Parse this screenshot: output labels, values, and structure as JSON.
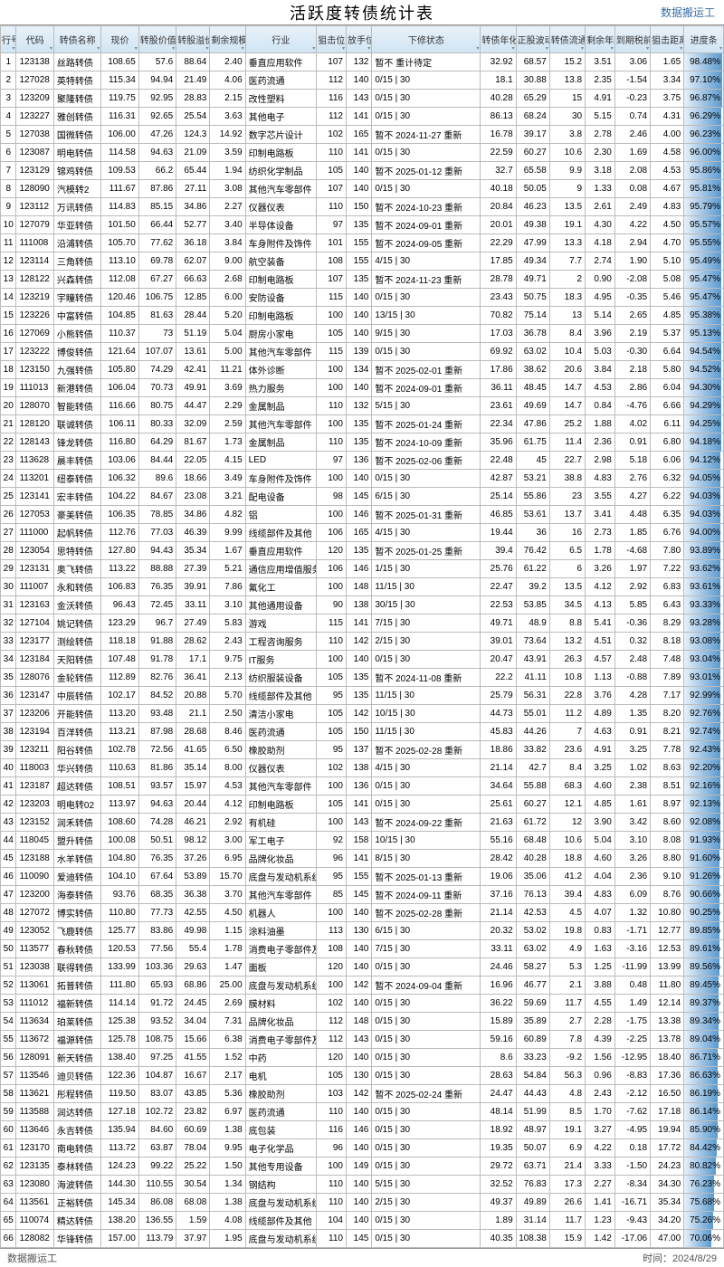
{
  "title": "活跃度转债统计表",
  "subtitle": "数据搬运工",
  "footer_left": "数据搬运工",
  "footer_right": "时间：2024/8/29",
  "headers": [
    "行号",
    "代码",
    "转债名称",
    "现价",
    "转股价值",
    "转股溢价率",
    "剩余规模(亿元)",
    "行业",
    "狙击位",
    "放手位",
    "下修状态",
    "转债年化波动率",
    "正股波动率",
    "转债流通市值占比",
    "剩余年限",
    "到期税前收益",
    "狙击距离",
    "进度条"
  ],
  "col_align": [
    "ctr",
    "lft",
    "lft",
    "num",
    "num",
    "num",
    "num",
    "lft",
    "num",
    "num",
    "lft",
    "num",
    "num",
    "num",
    "num",
    "num",
    "num",
    "progress"
  ],
  "header_bg_start": "#e8f1f8",
  "header_bg_end": "#d0e4f4",
  "progress_bg_start": "#e8f1fa",
  "progress_bg_end": "#5a9acf",
  "border_color": "#bbbbbb",
  "rows": [
    [
      "1",
      "123138",
      "丝路转债",
      "108.65",
      "57.6",
      "88.64",
      "2.40",
      "垂直应用软件",
      "107",
      "132",
      "暂不 重计待定",
      "32.92",
      "68.57",
      "15.2",
      "3.51",
      "3.06",
      "1.65",
      "98.48%"
    ],
    [
      "2",
      "127028",
      "英特转债",
      "115.34",
      "94.94",
      "21.49",
      "4.06",
      "医药流通",
      "112",
      "140",
      "0/15 | 30",
      "18.1",
      "30.88",
      "13.8",
      "2.35",
      "-1.54",
      "3.34",
      "97.10%"
    ],
    [
      "3",
      "123209",
      "聚隆转债",
      "119.75",
      "92.95",
      "28.83",
      "2.15",
      "改性塑料",
      "116",
      "143",
      "0/15 | 30",
      "40.28",
      "65.29",
      "15",
      "4.91",
      "-0.23",
      "3.75",
      "96.87%"
    ],
    [
      "4",
      "123227",
      "雅创转债",
      "116.31",
      "92.65",
      "25.54",
      "3.63",
      "其他电子",
      "112",
      "141",
      "0/15 | 30",
      "86.13",
      "68.24",
      "30",
      "5.15",
      "0.74",
      "4.31",
      "96.29%"
    ],
    [
      "5",
      "127038",
      "国微转债",
      "106.00",
      "47.26",
      "124.3",
      "14.92",
      "数字芯片设计",
      "102",
      "165",
      "暂不 2024-11-27 重新",
      "16.78",
      "39.17",
      "3.8",
      "2.78",
      "2.46",
      "4.00",
      "96.23%"
    ],
    [
      "6",
      "123087",
      "明电转债",
      "114.58",
      "94.63",
      "21.09",
      "3.59",
      "印制电路板",
      "110",
      "141",
      "0/15 | 30",
      "22.59",
      "60.27",
      "10.6",
      "2.30",
      "1.69",
      "4.58",
      "96.00%"
    ],
    [
      "7",
      "123129",
      "锦鸡转债",
      "109.53",
      "66.2",
      "65.44",
      "1.94",
      "纺织化学制品",
      "105",
      "140",
      "暂不 2025-01-12 重新",
      "32.7",
      "65.58",
      "9.9",
      "3.18",
      "2.08",
      "4.53",
      "95.86%"
    ],
    [
      "8",
      "128090",
      "汽模转2",
      "111.67",
      "87.86",
      "27.11",
      "3.08",
      "其他汽车零部件",
      "107",
      "140",
      "0/15 | 30",
      "40.18",
      "50.05",
      "9",
      "1.33",
      "0.08",
      "4.67",
      "95.81%"
    ],
    [
      "9",
      "123112",
      "万讯转债",
      "114.83",
      "85.15",
      "34.86",
      "2.27",
      "仪器仪表",
      "110",
      "150",
      "暂不 2024-10-23 重新",
      "20.84",
      "46.23",
      "13.5",
      "2.61",
      "2.49",
      "4.83",
      "95.79%"
    ],
    [
      "10",
      "127079",
      "华亚转债",
      "101.50",
      "66.44",
      "52.77",
      "3.40",
      "半导体设备",
      "97",
      "135",
      "暂不 2024-09-01 重新",
      "20.01",
      "49.38",
      "19.1",
      "4.30",
      "4.22",
      "4.50",
      "95.57%"
    ],
    [
      "11",
      "111008",
      "沿浦转债",
      "105.70",
      "77.62",
      "36.18",
      "3.84",
      "车身附件及饰件",
      "101",
      "155",
      "暂不 2024-09-05 重新",
      "22.29",
      "47.99",
      "13.3",
      "4.18",
      "2.94",
      "4.70",
      "95.55%"
    ],
    [
      "12",
      "123114",
      "三角转债",
      "113.10",
      "69.78",
      "62.07",
      "9.00",
      "航空装备",
      "108",
      "155",
      "4/15 | 30",
      "17.85",
      "49.34",
      "7.7",
      "2.74",
      "1.90",
      "5.10",
      "95.49%"
    ],
    [
      "13",
      "128122",
      "兴森转债",
      "112.08",
      "67.27",
      "66.63",
      "2.68",
      "印制电路板",
      "107",
      "135",
      "暂不 2024-11-23 重新",
      "28.78",
      "49.71",
      "2",
      "0.90",
      "-2.08",
      "5.08",
      "95.47%"
    ],
    [
      "14",
      "123219",
      "宇瞳转债",
      "120.46",
      "106.75",
      "12.85",
      "6.00",
      "安防设备",
      "115",
      "140",
      "0/15 | 30",
      "23.43",
      "50.75",
      "18.3",
      "4.95",
      "-0.35",
      "5.46",
      "95.47%"
    ],
    [
      "15",
      "123226",
      "中富转债",
      "104.85",
      "81.63",
      "28.44",
      "5.20",
      "印制电路板",
      "100",
      "140",
      "13/15 | 30",
      "70.82",
      "75.14",
      "13",
      "5.14",
      "2.65",
      "4.85",
      "95.38%"
    ],
    [
      "16",
      "127069",
      "小熊转债",
      "110.37",
      "73",
      "51.19",
      "5.04",
      "厨房小家电",
      "105",
      "140",
      "9/15 | 30",
      "17.03",
      "36.78",
      "8.4",
      "3.96",
      "2.19",
      "5.37",
      "95.13%"
    ],
    [
      "17",
      "123222",
      "博俊转债",
      "121.64",
      "107.07",
      "13.61",
      "5.00",
      "其他汽车零部件",
      "115",
      "139",
      "0/15 | 30",
      "69.92",
      "63.02",
      "10.4",
      "5.03",
      "-0.30",
      "6.64",
      "94.54%"
    ],
    [
      "18",
      "123150",
      "九强转债",
      "105.80",
      "74.29",
      "42.41",
      "11.21",
      "体外诊断",
      "100",
      "134",
      "暂不 2025-02-01 重新",
      "17.86",
      "38.62",
      "20.6",
      "3.84",
      "2.18",
      "5.80",
      "94.52%"
    ],
    [
      "19",
      "111013",
      "新港转债",
      "106.04",
      "70.73",
      "49.91",
      "3.69",
      "热力服务",
      "100",
      "140",
      "暂不 2024-09-01 重新",
      "36.11",
      "48.45",
      "14.7",
      "4.53",
      "2.86",
      "6.04",
      "94.30%"
    ],
    [
      "20",
      "128070",
      "智能转债",
      "116.66",
      "80.75",
      "44.47",
      "2.29",
      "金属制品",
      "110",
      "132",
      "5/15 | 30",
      "23.61",
      "49.69",
      "14.7",
      "0.84",
      "-4.76",
      "6.66",
      "94.29%"
    ],
    [
      "21",
      "128120",
      "联诚转债",
      "106.11",
      "80.33",
      "32.09",
      "2.59",
      "其他汽车零部件",
      "100",
      "135",
      "暂不 2025-01-24 重新",
      "22.34",
      "47.86",
      "25.2",
      "1.88",
      "4.02",
      "6.11",
      "94.25%"
    ],
    [
      "22",
      "128143",
      "锋龙转债",
      "116.80",
      "64.29",
      "81.67",
      "1.73",
      "金属制品",
      "110",
      "135",
      "暂不 2024-10-09 重新",
      "35.96",
      "61.75",
      "11.4",
      "2.36",
      "0.91",
      "6.80",
      "94.18%"
    ],
    [
      "23",
      "113628",
      "晨丰转债",
      "103.06",
      "84.44",
      "22.05",
      "4.15",
      "LED",
      "97",
      "136",
      "暂不 2025-02-06 重新",
      "22.48",
      "45",
      "22.7",
      "2.98",
      "5.18",
      "6.06",
      "94.12%"
    ],
    [
      "24",
      "113201",
      "纽泰转债",
      "106.32",
      "89.6",
      "18.66",
      "3.49",
      "车身附件及饰件",
      "100",
      "140",
      "0/15 | 30",
      "42.87",
      "53.21",
      "38.8",
      "4.83",
      "2.76",
      "6.32",
      "94.05%"
    ],
    [
      "25",
      "123141",
      "宏丰转债",
      "104.22",
      "84.67",
      "23.08",
      "3.21",
      "配电设备",
      "98",
      "145",
      "6/15 | 30",
      "25.14",
      "55.86",
      "23",
      "3.55",
      "4.27",
      "6.22",
      "94.03%"
    ],
    [
      "26",
      "127053",
      "豪美转债",
      "106.35",
      "78.85",
      "34.86",
      "4.82",
      "铝",
      "100",
      "146",
      "暂不 2025-01-31 重新",
      "46.85",
      "53.61",
      "13.7",
      "3.41",
      "4.48",
      "6.35",
      "94.03%"
    ],
    [
      "27",
      "111000",
      "起帆转债",
      "112.76",
      "77.03",
      "46.39",
      "9.99",
      "线缆部件及其他",
      "106",
      "165",
      "4/15 | 30",
      "19.44",
      "36",
      "16",
      "2.73",
      "1.85",
      "6.76",
      "94.00%"
    ],
    [
      "28",
      "123054",
      "思特转债",
      "127.80",
      "94.43",
      "35.34",
      "1.67",
      "垂直应用软件",
      "120",
      "135",
      "暂不 2025-01-25 重新",
      "39.4",
      "76.42",
      "6.5",
      "1.78",
      "-4.68",
      "7.80",
      "93.89%"
    ],
    [
      "29",
      "123131",
      "奥飞转债",
      "113.22",
      "88.88",
      "27.39",
      "5.21",
      "通信应用增值服务",
      "106",
      "146",
      "1/15 | 30",
      "25.76",
      "61.22",
      "6",
      "3.26",
      "1.97",
      "7.22",
      "93.62%"
    ],
    [
      "30",
      "111007",
      "永和转债",
      "106.83",
      "76.35",
      "39.91",
      "7.86",
      "氟化工",
      "100",
      "148",
      "11/15 | 30",
      "22.47",
      "39.2",
      "13.5",
      "4.12",
      "2.92",
      "6.83",
      "93.61%"
    ],
    [
      "31",
      "123163",
      "金沃转债",
      "96.43",
      "72.45",
      "33.11",
      "3.10",
      "其他通用设备",
      "90",
      "138",
      "30/15 | 30",
      "22.53",
      "53.85",
      "34.5",
      "4.13",
      "5.85",
      "6.43",
      "93.33%"
    ],
    [
      "32",
      "127104",
      "姚记转债",
      "123.29",
      "96.7",
      "27.49",
      "5.83",
      "游戏",
      "115",
      "141",
      "7/15 | 30",
      "49.71",
      "48.9",
      "8.8",
      "5.41",
      "-0.36",
      "8.29",
      "93.28%"
    ],
    [
      "33",
      "123177",
      "测绘转债",
      "118.18",
      "91.88",
      "28.62",
      "2.43",
      "工程咨询服务",
      "110",
      "142",
      "2/15 | 30",
      "39.01",
      "73.64",
      "13.2",
      "4.51",
      "0.32",
      "8.18",
      "93.08%"
    ],
    [
      "34",
      "123184",
      "天阳转债",
      "107.48",
      "91.78",
      "17.1",
      "9.75",
      "IT服务",
      "100",
      "140",
      "0/15 | 30",
      "20.47",
      "43.91",
      "26.3",
      "4.57",
      "2.48",
      "7.48",
      "93.04%"
    ],
    [
      "35",
      "128076",
      "金轮转债",
      "112.89",
      "82.76",
      "36.41",
      "2.13",
      "纺织服装设备",
      "105",
      "135",
      "暂不 2024-11-08 重新",
      "22.2",
      "41.11",
      "10.8",
      "1.13",
      "-0.88",
      "7.89",
      "93.01%"
    ],
    [
      "36",
      "123147",
      "中辰转债",
      "102.17",
      "84.52",
      "20.88",
      "5.70",
      "线缆部件及其他",
      "95",
      "135",
      "11/15 | 30",
      "25.79",
      "56.31",
      "22.8",
      "3.76",
      "4.28",
      "7.17",
      "92.99%"
    ],
    [
      "37",
      "123206",
      "开能转债",
      "113.20",
      "93.48",
      "21.1",
      "2.50",
      "清洁小家电",
      "105",
      "142",
      "10/15 | 30",
      "44.73",
      "55.01",
      "11.2",
      "4.89",
      "1.35",
      "8.20",
      "92.76%"
    ],
    [
      "38",
      "123194",
      "百洋转债",
      "113.21",
      "87.98",
      "28.68",
      "8.46",
      "医药流通",
      "105",
      "150",
      "11/15 | 30",
      "45.83",
      "44.26",
      "7",
      "4.63",
      "0.91",
      "8.21",
      "92.74%"
    ],
    [
      "39",
      "123211",
      "阳谷转债",
      "102.78",
      "72.56",
      "41.65",
      "6.50",
      "橡胶助剂",
      "95",
      "137",
      "暂不 2025-02-28 重新",
      "18.86",
      "33.82",
      "23.6",
      "4.91",
      "3.25",
      "7.78",
      "92.43%"
    ],
    [
      "40",
      "118003",
      "华兴转债",
      "110.63",
      "81.86",
      "35.14",
      "8.00",
      "仪器仪表",
      "102",
      "138",
      "4/15 | 30",
      "21.14",
      "42.7",
      "8.4",
      "3.25",
      "1.02",
      "8.63",
      "92.20%"
    ],
    [
      "41",
      "123187",
      "超达转债",
      "108.51",
      "93.57",
      "15.97",
      "4.53",
      "其他汽车零部件",
      "100",
      "136",
      "0/15 | 30",
      "34.64",
      "55.88",
      "68.3",
      "4.60",
      "2.38",
      "8.51",
      "92.16%"
    ],
    [
      "42",
      "123203",
      "明电转02",
      "113.97",
      "94.63",
      "20.44",
      "4.12",
      "印制电路板",
      "105",
      "141",
      "0/15 | 30",
      "25.61",
      "60.27",
      "12.1",
      "4.85",
      "1.61",
      "8.97",
      "92.13%"
    ],
    [
      "43",
      "123152",
      "润禾转债",
      "108.60",
      "74.28",
      "46.21",
      "2.92",
      "有机硅",
      "100",
      "143",
      "暂不 2024-09-22 重新",
      "21.63",
      "61.72",
      "12",
      "3.90",
      "3.42",
      "8.60",
      "92.08%"
    ],
    [
      "44",
      "118045",
      "盟升转债",
      "100.08",
      "50.51",
      "98.12",
      "3.00",
      "军工电子",
      "92",
      "158",
      "10/15 | 30",
      "55.16",
      "68.48",
      "10.6",
      "5.04",
      "3.10",
      "8.08",
      "91.93%"
    ],
    [
      "45",
      "123188",
      "水羊转债",
      "104.80",
      "76.35",
      "37.26",
      "6.95",
      "品牌化妆品",
      "96",
      "141",
      "8/15 | 30",
      "28.42",
      "40.28",
      "18.8",
      "4.60",
      "3.26",
      "8.80",
      "91.60%"
    ],
    [
      "46",
      "110090",
      "爱迪转债",
      "104.10",
      "67.64",
      "53.89",
      "15.70",
      "底盘与发动机系统",
      "95",
      "155",
      "暂不 2025-01-13 重新",
      "19.06",
      "35.06",
      "41.2",
      "4.04",
      "2.36",
      "9.10",
      "91.26%"
    ],
    [
      "47",
      "123200",
      "海泰转债",
      "93.76",
      "68.35",
      "36.38",
      "3.70",
      "其他汽车零部件",
      "85",
      "145",
      "暂不 2024-09-11 重新",
      "37.16",
      "76.13",
      "39.4",
      "4.83",
      "6.09",
      "8.76",
      "90.66%"
    ],
    [
      "48",
      "127072",
      "博实转债",
      "110.80",
      "77.73",
      "42.55",
      "4.50",
      "机器人",
      "100",
      "140",
      "暂不 2025-02-28 重新",
      "21.14",
      "42.53",
      "4.5",
      "4.07",
      "1.32",
      "10.80",
      "90.25%"
    ],
    [
      "49",
      "123052",
      "飞鹿转债",
      "125.77",
      "83.86",
      "49.98",
      "1.15",
      "涂料油墨",
      "113",
      "130",
      "6/15 | 30",
      "20.32",
      "53.02",
      "19.8",
      "0.83",
      "-1.71",
      "12.77",
      "89.85%"
    ],
    [
      "50",
      "113577",
      "春秋转债",
      "120.53",
      "77.56",
      "55.4",
      "1.78",
      "消费电子零部件及组装",
      "108",
      "140",
      "7/15 | 30",
      "33.11",
      "63.02",
      "4.9",
      "1.63",
      "-3.16",
      "12.53",
      "89.61%"
    ],
    [
      "51",
      "123038",
      "联得转债",
      "133.99",
      "103.36",
      "29.63",
      "1.47",
      "面板",
      "120",
      "140",
      "0/15 | 30",
      "24.46",
      "58.27",
      "5.3",
      "1.25",
      "-11.99",
      "13.99",
      "89.56%"
    ],
    [
      "52",
      "113061",
      "拓普转债",
      "111.80",
      "65.93",
      "68.86",
      "25.00",
      "底盘与发动机系统",
      "100",
      "142",
      "暂不 2024-09-04 重新",
      "16.96",
      "46.77",
      "2.1",
      "3.88",
      "0.48",
      "11.80",
      "89.45%"
    ],
    [
      "53",
      "111012",
      "福新转债",
      "114.14",
      "91.72",
      "24.45",
      "2.69",
      "膜材料",
      "102",
      "140",
      "0/15 | 30",
      "36.22",
      "59.69",
      "11.7",
      "4.55",
      "1.49",
      "12.14",
      "89.37%"
    ],
    [
      "54",
      "113634",
      "珀莱转债",
      "125.38",
      "93.52",
      "34.04",
      "7.31",
      "品牌化妆品",
      "112",
      "148",
      "0/15 | 30",
      "15.89",
      "35.89",
      "2.7",
      "2.28",
      "-1.75",
      "13.38",
      "89.34%"
    ],
    [
      "55",
      "113672",
      "福源转债",
      "125.78",
      "108.75",
      "15.66",
      "6.38",
      "消费电子零部件及组装",
      "112",
      "143",
      "0/15 | 30",
      "59.16",
      "60.89",
      "7.8",
      "4.39",
      "-2.25",
      "13.78",
      "89.04%"
    ],
    [
      "56",
      "128091",
      "新天转债",
      "138.40",
      "97.25",
      "41.55",
      "1.52",
      "中药",
      "120",
      "140",
      "0/15 | 30",
      "8.6",
      "33.23",
      "-9.2",
      "1.56",
      "-12.95",
      "18.40",
      "86.71%"
    ],
    [
      "57",
      "113546",
      "迪贝转债",
      "122.36",
      "104.87",
      "16.67",
      "2.17",
      "电机",
      "105",
      "130",
      "0/15 | 30",
      "28.63",
      "54.84",
      "56.3",
      "0.96",
      "-8.83",
      "17.36",
      "86.63%"
    ],
    [
      "58",
      "113621",
      "彤程转债",
      "119.50",
      "83.07",
      "43.85",
      "5.36",
      "橡胶助剂",
      "103",
      "142",
      "暂不 2025-02-24 重新",
      "24.47",
      "44.43",
      "4.8",
      "2.43",
      "-2.12",
      "16.50",
      "86.19%"
    ],
    [
      "59",
      "113588",
      "润达转债",
      "127.18",
      "102.72",
      "23.82",
      "6.97",
      "医药流通",
      "110",
      "140",
      "0/15 | 30",
      "48.14",
      "51.99",
      "8.5",
      "1.70",
      "-7.62",
      "17.18",
      "86.14%"
    ],
    [
      "60",
      "113646",
      "永吉转债",
      "135.94",
      "84.60",
      "60.69",
      "1.38",
      "底包装",
      "116",
      "146",
      "0/15 | 30",
      "18.92",
      "48.97",
      "19.1",
      "3.27",
      "-4.95",
      "19.94",
      "85.90%"
    ],
    [
      "61",
      "123170",
      "南电转债",
      "113.72",
      "63.87",
      "78.04",
      "9.95",
      "电子化学品",
      "96",
      "140",
      "0/15 | 30",
      "19.35",
      "50.07",
      "6.9",
      "4.22",
      "0.18",
      "17.72",
      "84.42%"
    ],
    [
      "62",
      "123135",
      "泰林转债",
      "124.23",
      "99.22",
      "25.22",
      "1.50",
      "其他专用设备",
      "100",
      "149",
      "0/15 | 30",
      "29.72",
      "63.71",
      "21.4",
      "3.33",
      "-1.50",
      "24.23",
      "80.82%"
    ],
    [
      "63",
      "123080",
      "海波转债",
      "144.30",
      "110.55",
      "30.54",
      "1.34",
      "钢结构",
      "110",
      "140",
      "5/15 | 30",
      "32.52",
      "76.83",
      "17.3",
      "2.27",
      "-8.34",
      "34.30",
      "76.23%"
    ],
    [
      "64",
      "113561",
      "正裕转债",
      "145.34",
      "86.08",
      "68.08",
      "1.38",
      "底盘与发动机系统",
      "110",
      "140",
      "2/15 | 30",
      "49.37",
      "49.89",
      "26.6",
      "1.41",
      "-16.71",
      "35.34",
      "75.68%"
    ],
    [
      "65",
      "110074",
      "精达转债",
      "138.20",
      "136.55",
      "1.59",
      "4.08",
      "线缆部件及其他",
      "104",
      "140",
      "0/15 | 30",
      "1.89",
      "31.14",
      "11.7",
      "1.23",
      "-9.43",
      "34.20",
      "75.26%"
    ],
    [
      "66",
      "128082",
      "华锋转债",
      "157.00",
      "113.79",
      "37.97",
      "1.95",
      "底盘与发动机系统",
      "110",
      "145",
      "0/15 | 30",
      "40.35",
      "108.38",
      "15.9",
      "1.42",
      "-17.06",
      "47.00",
      "70.06%"
    ]
  ]
}
